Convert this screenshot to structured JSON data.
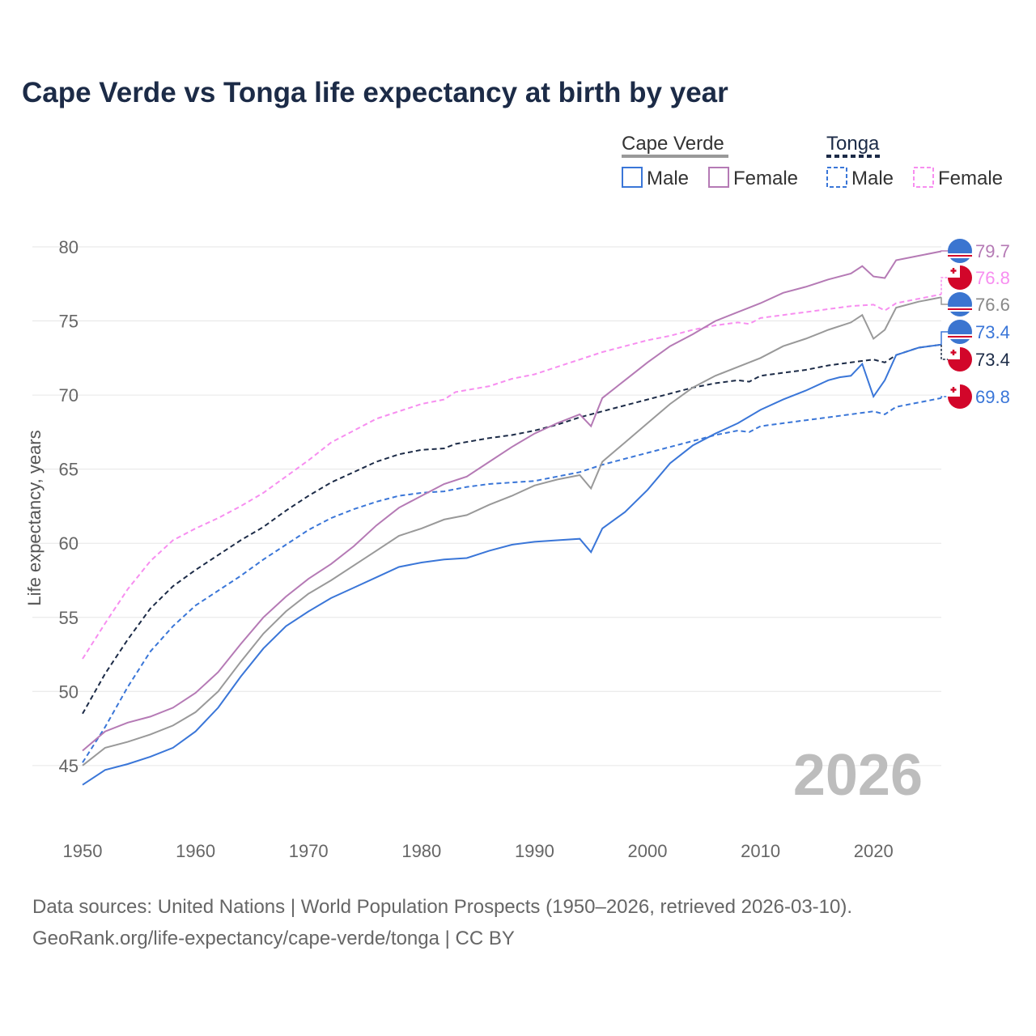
{
  "title": "Cape Verde vs Tonga life expectancy at birth by year",
  "source_line1": "Data sources: United Nations | World Population Prospects (1950–2026, retrieved 2026-03-10).",
  "source_line2": "GeoRank.org/life-expectancy/cape-verde/tonga | CC BY",
  "chart_data": {
    "type": "line",
    "title": "Cape Verde vs Tonga life expectancy at birth by year",
    "xlabel": "",
    "ylabel": "Life expectancy, years",
    "xlim": [
      1950,
      2026
    ],
    "ylim": [
      42.5,
      81.5
    ],
    "xticks": [
      1950,
      1960,
      1970,
      1980,
      1990,
      2000,
      2010,
      2020
    ],
    "yticks": [
      45,
      50,
      55,
      60,
      65,
      70,
      75,
      80
    ],
    "grid": true,
    "year_label": "2026",
    "legend": {
      "placement": "top-right",
      "groups": [
        {
          "name": "Cape Verde",
          "items": [
            "Male",
            "Female"
          ]
        },
        {
          "name": "Tonga",
          "items": [
            "Male",
            "Female"
          ]
        }
      ]
    },
    "series": [
      {
        "name": "Tonga Female",
        "country": "Tonga",
        "sex": "Female",
        "color": "#f78ef0",
        "dashed": true,
        "end_label": "76.8",
        "x": [
          1950,
          1952,
          1954,
          1956,
          1958,
          1960,
          1962,
          1964,
          1966,
          1968,
          1970,
          1972,
          1974,
          1976,
          1978,
          1980,
          1982,
          1983,
          1986,
          1988,
          1990,
          1992,
          1994,
          1996,
          1998,
          2000,
          2002,
          2004,
          2006,
          2008,
          2009,
          2010,
          2012,
          2014,
          2016,
          2018,
          2020,
          2021,
          2022,
          2024,
          2026
        ],
        "y": [
          52.2,
          54.6,
          56.9,
          58.8,
          60.2,
          61.0,
          61.7,
          62.5,
          63.4,
          64.5,
          65.6,
          66.8,
          67.6,
          68.4,
          68.9,
          69.4,
          69.7,
          70.2,
          70.6,
          71.1,
          71.4,
          71.9,
          72.4,
          72.9,
          73.3,
          73.7,
          74.0,
          74.4,
          74.7,
          74.9,
          74.8,
          75.2,
          75.4,
          75.6,
          75.8,
          76.0,
          76.1,
          75.7,
          76.2,
          76.5,
          76.8
        ]
      },
      {
        "name": "Tonga Male",
        "country": "Tonga",
        "sex": "Male",
        "color": "#3a76d8",
        "dashed": true,
        "end_label": "69.8",
        "x": [
          1950,
          1952,
          1954,
          1956,
          1958,
          1960,
          1962,
          1964,
          1966,
          1968,
          1970,
          1972,
          1974,
          1976,
          1978,
          1980,
          1982,
          1984,
          1986,
          1988,
          1990,
          1992,
          1994,
          1996,
          1998,
          2000,
          2002,
          2004,
          2006,
          2008,
          2009,
          2010,
          2012,
          2014,
          2016,
          2018,
          2020,
          2021,
          2022,
          2024,
          2026
        ],
        "y": [
          45.2,
          47.6,
          50.3,
          52.7,
          54.4,
          55.8,
          56.8,
          57.8,
          58.9,
          59.9,
          60.9,
          61.7,
          62.3,
          62.8,
          63.2,
          63.4,
          63.5,
          63.8,
          64.0,
          64.1,
          64.2,
          64.5,
          64.8,
          65.3,
          65.7,
          66.1,
          66.5,
          66.9,
          67.3,
          67.6,
          67.5,
          67.9,
          68.1,
          68.3,
          68.5,
          68.7,
          68.9,
          68.7,
          69.2,
          69.5,
          69.8
        ]
      },
      {
        "name": "Tonga",
        "country": "Tonga",
        "sex": "Total",
        "color": "#1c2b47",
        "dashed": true,
        "end_label": "73.4",
        "x": [
          1950,
          1952,
          1954,
          1956,
          1958,
          1960,
          1962,
          1964,
          1966,
          1968,
          1970,
          1972,
          1974,
          1976,
          1978,
          1980,
          1982,
          1983,
          1986,
          1988,
          1990,
          1992,
          1994,
          1996,
          1998,
          2000,
          2002,
          2004,
          2006,
          2008,
          2009,
          2010,
          2012,
          2014,
          2016,
          2018,
          2020,
          2021,
          2022,
          2024,
          2026
        ],
        "y": [
          48.5,
          51.2,
          53.5,
          55.6,
          57.1,
          58.2,
          59.2,
          60.2,
          61.1,
          62.2,
          63.2,
          64.1,
          64.8,
          65.5,
          66.0,
          66.3,
          66.4,
          66.7,
          67.1,
          67.3,
          67.6,
          68.0,
          68.5,
          68.9,
          69.3,
          69.7,
          70.1,
          70.5,
          70.8,
          71.0,
          70.9,
          71.3,
          71.5,
          71.7,
          72.0,
          72.2,
          72.4,
          72.2,
          72.7,
          73.2,
          73.4
        ]
      },
      {
        "name": "Cape Verde",
        "country": "Cape Verde",
        "sex": "Total",
        "color": "#999999",
        "dashed": false,
        "end_label": "76.6",
        "x": [
          1950,
          1952,
          1954,
          1956,
          1958,
          1960,
          1962,
          1964,
          1966,
          1968,
          1970,
          1972,
          1974,
          1976,
          1978,
          1980,
          1982,
          1984,
          1986,
          1988,
          1990,
          1992,
          1994,
          1995,
          1996,
          1998,
          2000,
          2002,
          2004,
          2006,
          2008,
          2010,
          2012,
          2014,
          2016,
          2018,
          2019,
          2020,
          2021,
          2022,
          2024,
          2026
        ],
        "y": [
          45.0,
          46.2,
          46.6,
          47.1,
          47.7,
          48.6,
          50.0,
          52.0,
          53.9,
          55.4,
          56.6,
          57.5,
          58.5,
          59.5,
          60.5,
          61.0,
          61.6,
          61.9,
          62.6,
          63.2,
          63.9,
          64.3,
          64.6,
          63.7,
          65.5,
          66.8,
          68.1,
          69.4,
          70.5,
          71.3,
          71.9,
          72.5,
          73.3,
          73.8,
          74.4,
          74.9,
          75.4,
          73.8,
          74.4,
          75.9,
          76.3,
          76.6
        ]
      },
      {
        "name": "Cape Verde Female",
        "country": "Cape Verde",
        "sex": "Female",
        "color": "#b57ab5",
        "dashed": false,
        "end_label": "79.7",
        "x": [
          1950,
          1952,
          1954,
          1956,
          1958,
          1960,
          1962,
          1964,
          1966,
          1968,
          1970,
          1972,
          1974,
          1976,
          1978,
          1980,
          1982,
          1984,
          1986,
          1988,
          1990,
          1992,
          1994,
          1995,
          1996,
          1998,
          2000,
          2002,
          2004,
          2006,
          2008,
          2010,
          2012,
          2014,
          2016,
          2018,
          2019,
          2020,
          2021,
          2022,
          2024,
          2026
        ],
        "y": [
          46.0,
          47.3,
          47.9,
          48.3,
          48.9,
          49.9,
          51.3,
          53.2,
          55.0,
          56.4,
          57.6,
          58.6,
          59.8,
          61.2,
          62.4,
          63.2,
          64.0,
          64.5,
          65.5,
          66.5,
          67.4,
          68.1,
          68.7,
          67.9,
          69.8,
          71.0,
          72.2,
          73.3,
          74.1,
          75.0,
          75.6,
          76.2,
          76.9,
          77.3,
          77.8,
          78.2,
          78.7,
          78.0,
          77.9,
          79.1,
          79.4,
          79.7
        ]
      },
      {
        "name": "Cape Verde Male",
        "country": "Cape Verde",
        "sex": "Male",
        "color": "#3a76d8",
        "dashed": false,
        "end_label": "73.4",
        "x": [
          1950,
          1952,
          1954,
          1956,
          1958,
          1960,
          1962,
          1964,
          1966,
          1968,
          1970,
          1972,
          1974,
          1976,
          1978,
          1980,
          1982,
          1984,
          1986,
          1988,
          1990,
          1992,
          1994,
          1995,
          1996,
          1998,
          2000,
          2002,
          2004,
          2006,
          2008,
          2010,
          2012,
          2014,
          2016,
          2017,
          2018,
          2019,
          2020,
          2021,
          2022,
          2024,
          2026
        ],
        "y": [
          43.7,
          44.7,
          45.1,
          45.6,
          46.2,
          47.3,
          48.9,
          51.0,
          52.9,
          54.4,
          55.4,
          56.3,
          57.0,
          57.7,
          58.4,
          58.7,
          58.9,
          59.0,
          59.5,
          59.9,
          60.1,
          60.2,
          60.3,
          59.4,
          61.0,
          62.1,
          63.6,
          65.4,
          66.6,
          67.4,
          68.1,
          69.0,
          69.7,
          70.3,
          71.0,
          71.2,
          71.3,
          72.1,
          69.9,
          71.0,
          72.7,
          73.2,
          73.4
        ]
      }
    ]
  }
}
